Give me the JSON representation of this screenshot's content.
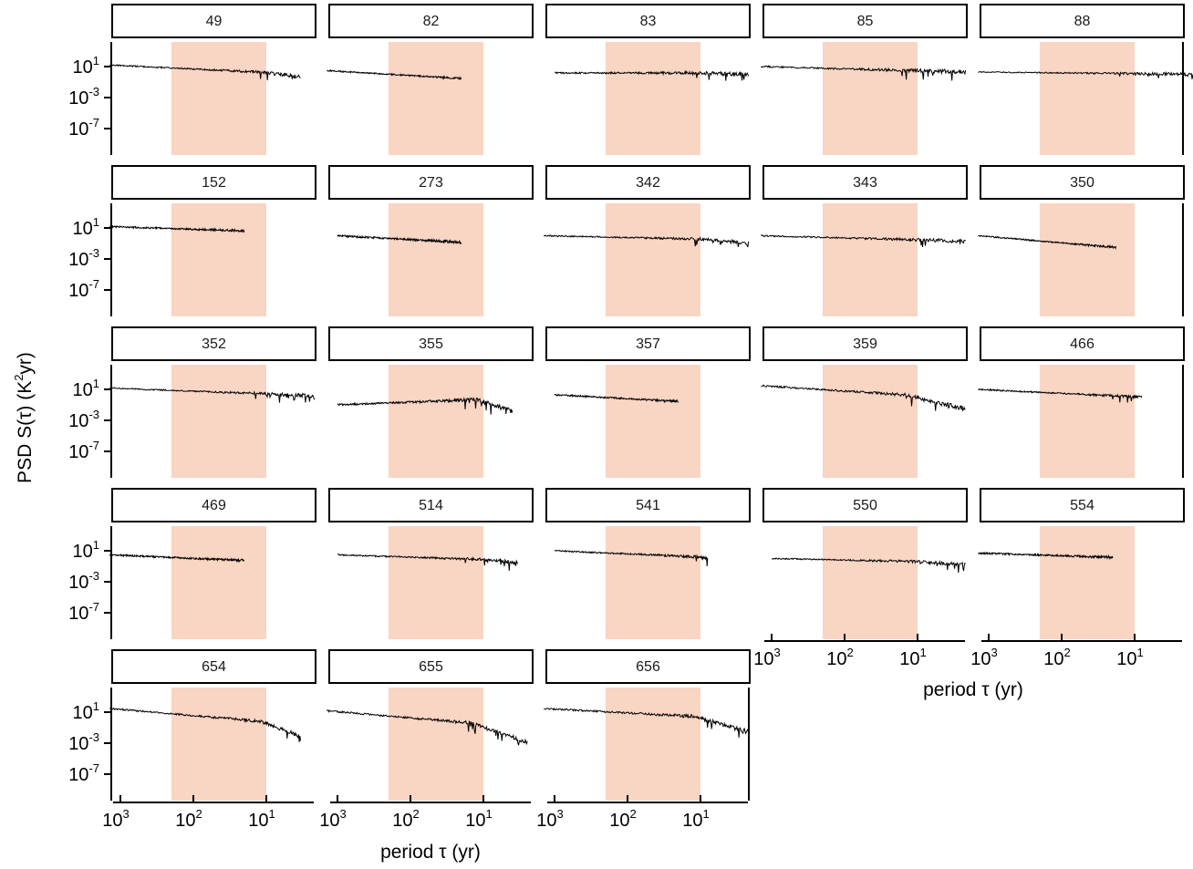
{
  "chart_data": {
    "type": "line",
    "layout": "faceted small multiples, 5 columns x 5 rows (23 panels), log-log spectra",
    "xlabel": "period τ (yr)",
    "ylabel": "PSD S(τ) (K²yr)",
    "ylabel_parts": {
      "pre": "PSD S(τ) (K",
      "sup": "2",
      "post": "yr)"
    },
    "xlabel_parts": {
      "pre": "period ",
      "sym": "τ",
      "post": " (yr)"
    },
    "x_scale": "log, reversed (long periods on left)",
    "x_ticks": [
      {
        "value": 1000,
        "base": "10",
        "exp": "3"
      },
      {
        "value": 100,
        "base": "10",
        "exp": "2"
      },
      {
        "value": 10,
        "base": "10",
        "exp": "1"
      }
    ],
    "y_scale": "log",
    "y_ticks": [
      {
        "value": 10,
        "base": "10",
        "exp": "1"
      },
      {
        "value": 0.001,
        "base": "10",
        "exp": "-3"
      },
      {
        "value": 1e-07,
        "base": "10",
        "exp": "-7"
      }
    ],
    "xlim": [
      3000,
      2
    ],
    "ylim": [
      1e-12,
      10000
    ],
    "highlight_band": {
      "from": 200,
      "to": 10,
      "color": "#f9d5c3"
    },
    "panels": [
      {
        "id": "49",
        "tmax": 1400,
        "tmin": 3.4,
        "s0": 16,
        "slope": 0.45,
        "steep_from": 10,
        "steep": 0.8,
        "noise": 1.6
      },
      {
        "id": "82",
        "tmax": 1400,
        "tmin": 20,
        "s0": 3,
        "slope": 0.55,
        "steep_from": 0,
        "steep": 0,
        "noise": 1.4
      },
      {
        "id": "83",
        "tmax": 1000,
        "tmin": 2.2,
        "s0": 1.5,
        "slope": 0.0,
        "steep_from": 10,
        "steep": 0.3,
        "noise": 1.8
      },
      {
        "id": "85",
        "tmax": 1400,
        "tmin": 2.2,
        "s0": 10,
        "slope": 0.25,
        "steep_from": 0,
        "steep": 0,
        "noise": 1.9
      },
      {
        "id": "88",
        "tmax": 1400,
        "tmin": 1.2,
        "s0": 2,
        "slope": 0.1,
        "steep_from": 0,
        "steep": 0,
        "noise": 1.3
      },
      {
        "id": "152",
        "tmax": 1400,
        "tmin": 20,
        "s0": 15,
        "slope": 0.3,
        "steep_from": 0,
        "steep": 0,
        "noise": 1.8
      },
      {
        "id": "273",
        "tmax": 1000,
        "tmin": 20,
        "s0": 1,
        "slope": 0.5,
        "steep_from": 0,
        "steep": 0,
        "noise": 2.0
      },
      {
        "id": "342",
        "tmax": 1400,
        "tmin": 2.2,
        "s0": 1,
        "slope": 0.2,
        "steep_from": 10,
        "steep": 0.6,
        "noise": 1.6
      },
      {
        "id": "343",
        "tmax": 1400,
        "tmin": 2.2,
        "s0": 1,
        "slope": 0.25,
        "steep_from": 0,
        "steep": 0,
        "noise": 1.7
      },
      {
        "id": "350",
        "tmax": 1400,
        "tmin": 18,
        "s0": 1,
        "slope": 0.8,
        "steep_from": 0,
        "steep": 0,
        "noise": 1.5
      },
      {
        "id": "352",
        "tmax": 1400,
        "tmin": 2.2,
        "s0": 15,
        "slope": 0.35,
        "steep_from": 0,
        "steep": 0,
        "noise": 1.6
      },
      {
        "id": "355",
        "tmax": 1000,
        "tmin": 4,
        "s0": 0.1,
        "slope": -0.35,
        "steep_from": 12,
        "steep": 3.5,
        "noise": 2.2
      },
      {
        "id": "357",
        "tmax": 1000,
        "tmin": 20,
        "s0": 2,
        "slope": 0.5,
        "steep_from": 0,
        "steep": 0,
        "noise": 1.6
      },
      {
        "id": "359",
        "tmax": 1400,
        "tmin": 2.2,
        "s0": 30,
        "slope": 0.6,
        "steep_from": 15,
        "steep": 1.6,
        "noise": 2.0
      },
      {
        "id": "466",
        "tmax": 1400,
        "tmin": 8,
        "s0": 10,
        "slope": 0.45,
        "steep_from": 0,
        "steep": 0,
        "noise": 1.5
      },
      {
        "id": "469",
        "tmax": 1400,
        "tmin": 20,
        "s0": 3,
        "slope": 0.4,
        "steep_from": 0,
        "steep": 0,
        "noise": 1.8
      },
      {
        "id": "514",
        "tmax": 1000,
        "tmin": 3.4,
        "s0": 3,
        "slope": 0.3,
        "steep_from": 8,
        "steep": 0.8,
        "noise": 1.6
      },
      {
        "id": "541",
        "tmax": 1000,
        "tmin": 8,
        "s0": 10,
        "slope": 0.4,
        "steep_from": 12,
        "steep": 0.9,
        "noise": 1.6
      },
      {
        "id": "550",
        "tmax": 1000,
        "tmin": 2.2,
        "s0": 1,
        "slope": 0.2,
        "steep_from": 10,
        "steep": 0.4,
        "noise": 1.5
      },
      {
        "id": "554",
        "tmax": 1400,
        "tmin": 20,
        "s0": 5,
        "slope": 0.3,
        "steep_from": 0,
        "steep": 0,
        "noise": 1.9
      },
      {
        "id": "654",
        "tmax": 1400,
        "tmin": 3.4,
        "s0": 30,
        "slope": 0.8,
        "steep_from": 12,
        "steep": 2.8,
        "noise": 1.9
      },
      {
        "id": "655",
        "tmax": 1400,
        "tmin": 2.5,
        "s0": 15,
        "slope": 0.8,
        "steep_from": 15,
        "steep": 2.4,
        "noise": 2.0
      },
      {
        "id": "656",
        "tmax": 1400,
        "tmin": 2.2,
        "s0": 30,
        "slope": 0.5,
        "steep_from": 12,
        "steep": 2.2,
        "noise": 2.0
      }
    ]
  }
}
